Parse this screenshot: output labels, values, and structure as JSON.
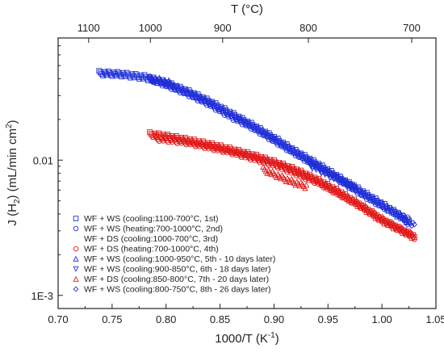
{
  "chart_data": {
    "type": "scatter",
    "xlabel": "1000/T (K",
    "xlabel_sup": "-1",
    "xlabel_close": ")",
    "ylabel": "J (H",
    "ylabel_sub": "2",
    "ylabel_mid": ") (mL/min cm",
    "ylabel_sup": "2",
    "ylabel_close": ")",
    "top_xlabel": "T (°C)",
    "xlim": [
      0.7,
      1.05
    ],
    "ylim": [
      0.0008,
      0.08
    ],
    "yscale": "log",
    "x_ticks": [
      "0.70",
      "0.75",
      "0.80",
      "0.85",
      "0.90",
      "0.95",
      "1.00",
      "1.05"
    ],
    "y_ticks": [
      {
        "value": 0.01,
        "label": "0.01"
      },
      {
        "value": 0.001,
        "label": "1E-3"
      }
    ],
    "top_ticks": [
      {
        "value": 1100,
        "label": "1100"
      },
      {
        "value": 1000,
        "label": "1000"
      },
      {
        "value": 900,
        "label": "900"
      },
      {
        "value": 800,
        "label": "800"
      },
      {
        "value": 700,
        "label": "700"
      }
    ],
    "legend_position": "bottom-left",
    "series": [
      {
        "name": "WF + WS (cooling:1100-700°C, 1st)",
        "color": "#1f2fd6",
        "marker": "square",
        "x": [
          0.738,
          0.76,
          0.78,
          0.8,
          0.82,
          0.84,
          0.86,
          0.88,
          0.9,
          0.92,
          0.94,
          0.96,
          0.98,
          1.0,
          1.02,
          1.025
        ],
        "y": [
          0.044,
          0.043,
          0.041,
          0.037,
          0.032,
          0.027,
          0.022,
          0.018,
          0.0145,
          0.0115,
          0.0093,
          0.0074,
          0.0059,
          0.0047,
          0.0037,
          0.0035
        ]
      },
      {
        "name": "WF + WS (heating:700-1000°C, 2nd)",
        "color": "#1f2fd6",
        "marker": "circle",
        "x": [
          0.785,
          0.8,
          0.82,
          0.84,
          0.86,
          0.88,
          0.9,
          0.92,
          0.94,
          0.96,
          0.98,
          1.0,
          1.025
        ],
        "y": [
          0.04,
          0.036,
          0.031,
          0.026,
          0.021,
          0.0175,
          0.014,
          0.0112,
          0.009,
          0.0072,
          0.0057,
          0.0046,
          0.0036
        ]
      },
      {
        "name": "WF + DS (cooling:1000-700°C, 3rd)",
        "color": "#e01818",
        "marker": "none",
        "x": [
          0.785,
          0.8,
          0.82,
          0.84,
          0.86,
          0.88,
          0.9,
          0.92,
          0.94,
          0.96,
          0.98,
          1.0,
          1.03
        ],
        "y": [
          0.0155,
          0.015,
          0.014,
          0.013,
          0.0119,
          0.0108,
          0.0096,
          0.0084,
          0.0071,
          0.0058,
          0.0046,
          0.0036,
          0.0027
        ]
      },
      {
        "name": "WF + DS (heating:700-1000°C, 4th)",
        "color": "#e01818",
        "marker": "circle",
        "x": [
          0.79,
          0.82,
          0.86,
          0.9,
          0.94,
          0.98,
          1.0,
          1.03
        ],
        "y": [
          0.0145,
          0.0135,
          0.0115,
          0.0093,
          0.0069,
          0.0046,
          0.0036,
          0.0027
        ]
      },
      {
        "name": "WF + WS (cooling:1000-950°C, 5th - 10 days later)",
        "color": "#1f2fd6",
        "marker": "triangle-up",
        "x": [
          0.785,
          0.795,
          0.805
        ],
        "y": [
          0.04,
          0.039,
          0.037
        ]
      },
      {
        "name": "WF + WS (cooling:900-850°C, 6th - 18 days later)",
        "color": "#1f2fd6",
        "marker": "triangle-down",
        "x": [
          0.932,
          0.945,
          0.96,
          0.975
        ],
        "y": [
          0.0093,
          0.0082,
          0.0071,
          0.0062
        ]
      },
      {
        "name": "WF + DS (cooling:850-800°C, 7th - 20 days later)",
        "color": "#e01818",
        "marker": "triangle-up",
        "x": [
          0.89,
          0.9,
          0.91,
          0.92,
          0.93
        ],
        "y": [
          0.0086,
          0.0079,
          0.0073,
          0.0068,
          0.0064
        ]
      },
      {
        "name": "WF + WS (cooling:800-750°C, 8th - 26 days later)",
        "color": "#1f2fd6",
        "marker": "diamond",
        "x": [
          1.02,
          1.025,
          1.03
        ],
        "y": [
          0.0036,
          0.0034,
          0.0033
        ]
      }
    ]
  }
}
